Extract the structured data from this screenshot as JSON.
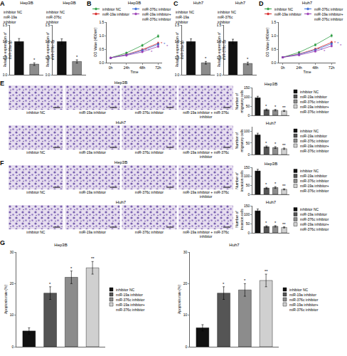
{
  "chart_data": [
    {
      "type": "bar",
      "title": "Hep3B",
      "y_label": "Relative expression of miR-19a-3p",
      "categories": [
        "inhibitor NC",
        "miR-19a inhibitor"
      ],
      "values": [
        1.0,
        0.32
      ],
      "errors": [
        0.09,
        0.04
      ],
      "colors": [
        "#111111",
        "#8c8c8c"
      ],
      "annotations": [
        null,
        "*"
      ],
      "ylim": [
        0,
        1.5
      ],
      "yticks": [
        {
          "value": 0,
          "label": "0.0"
        },
        {
          "value": 0.5,
          "label": "0.5"
        },
        {
          "value": 1,
          "label": "1.0"
        },
        {
          "value": 1.5,
          "label": "1.5"
        }
      ],
      "tick_labels": "y",
      "legend": "top"
    },
    {
      "type": "bar",
      "title": "Hep3B",
      "y_label": "Relative expression of miR-376c-3p",
      "categories": [
        "inhibitor NC",
        "miR-376c inhibitor"
      ],
      "values": [
        1.0,
        0.4
      ],
      "errors": [
        0.08,
        0.05
      ],
      "colors": [
        "#111111",
        "#8c8c8c"
      ],
      "annotations": [
        null,
        "*"
      ],
      "ylim": [
        0,
        1.5
      ],
      "yticks": [
        {
          "value": 0,
          "label": "0.0"
        },
        {
          "value": 0.5,
          "label": "0.5"
        },
        {
          "value": 1,
          "label": "1.0"
        },
        {
          "value": 1.5,
          "label": "1.5"
        }
      ],
      "tick_labels": "y",
      "legend": "top"
    },
    {
      "type": "line",
      "title": "Hep3B",
      "x_label": "Time",
      "y_label": "OD Value (450nm)",
      "categories": [
        "0h",
        "24h",
        "48h",
        "72h"
      ],
      "series": [
        {
          "name": "inhibitor NC",
          "color": "#2e9e44",
          "marker": "circle",
          "values": [
            0.18,
            0.36,
            0.64,
            0.98
          ],
          "errors": [
            0.02,
            0.03,
            0.04,
            0.05
          ]
        },
        {
          "name": "miR-19a inhibitor",
          "color": "#d62728",
          "marker": "circle",
          "values": [
            0.18,
            0.3,
            0.48,
            0.72
          ],
          "errors": [
            0.02,
            0.03,
            0.04,
            0.04
          ],
          "annotations": [
            null,
            null,
            "*",
            "*"
          ]
        },
        {
          "name": "miR-376c inhibitor",
          "color": "#3b6fd8",
          "marker": "circle",
          "values": [
            0.18,
            0.29,
            0.45,
            0.68
          ],
          "errors": [
            0.02,
            0.03,
            0.04,
            0.04
          ],
          "annotations": [
            null,
            null,
            "*",
            "*"
          ]
        },
        {
          "name": "miR-19a inhibitor+miR-376c inhibitor",
          "color": "#9b3fb5",
          "marker": "circle",
          "values": [
            0.18,
            0.27,
            0.4,
            0.6
          ],
          "errors": [
            0.02,
            0.03,
            0.03,
            0.04
          ],
          "annotations": [
            null,
            null,
            "*",
            "*"
          ]
        }
      ],
      "ylim": [
        0,
        1.5
      ],
      "yticks": [
        {
          "value": 0,
          "label": "0.0"
        },
        {
          "value": 0.5,
          "label": "0.5"
        },
        {
          "value": 1,
          "label": "1.0"
        },
        {
          "value": 1.5,
          "label": "1.5"
        }
      ],
      "legend": "top"
    },
    {
      "type": "bar",
      "title": "Huh7",
      "y_label": "Relative expression of miR-19a-3p",
      "categories": [
        "inhibitor NC",
        "miR-19a inhibitor"
      ],
      "values": [
        1.0,
        0.36
      ],
      "errors": [
        0.08,
        0.04
      ],
      "colors": [
        "#111111",
        "#8c8c8c"
      ],
      "annotations": [
        null,
        "*"
      ],
      "ylim": [
        0,
        1.5
      ],
      "yticks": [
        {
          "value": 0,
          "label": "0.0"
        },
        {
          "value": 0.5,
          "label": "0.5"
        },
        {
          "value": 1,
          "label": "1.0"
        },
        {
          "value": 1.5,
          "label": "1.5"
        }
      ],
      "tick_labels": "y",
      "legend": "top"
    },
    {
      "type": "bar",
      "title": "Huh7",
      "y_label": "Relative expression of miR-376c-3p",
      "categories": [
        "inhibitor NC",
        "miR-376c inhibitor"
      ],
      "values": [
        1.0,
        0.34
      ],
      "errors": [
        0.07,
        0.04
      ],
      "colors": [
        "#111111",
        "#8c8c8c"
      ],
      "annotations": [
        null,
        "*"
      ],
      "ylim": [
        0,
        1.5
      ],
      "yticks": [
        {
          "value": 0,
          "label": "0.0"
        },
        {
          "value": 0.5,
          "label": "0.5"
        },
        {
          "value": 1,
          "label": "1.0"
        },
        {
          "value": 1.5,
          "label": "1.5"
        }
      ],
      "tick_labels": "y",
      "legend": "top"
    },
    {
      "type": "line",
      "title": "Huh7",
      "x_label": "Time",
      "y_label": "OD Value (450nm)",
      "categories": [
        "0h",
        "24h",
        "48h",
        "72h"
      ],
      "series": [
        {
          "name": "inhibitor NC",
          "color": "#2e9e44",
          "marker": "circle",
          "values": [
            0.2,
            0.38,
            0.66,
            1.0
          ],
          "errors": [
            0.02,
            0.03,
            0.04,
            0.05
          ]
        },
        {
          "name": "miR-19a inhibitor",
          "color": "#d62728",
          "marker": "circle",
          "values": [
            0.2,
            0.32,
            0.5,
            0.75
          ],
          "errors": [
            0.02,
            0.03,
            0.04,
            0.04
          ],
          "annotations": [
            null,
            null,
            "*",
            "*"
          ]
        },
        {
          "name": "miR-376c inhibitor",
          "color": "#3b6fd8",
          "marker": "circle",
          "values": [
            0.2,
            0.31,
            0.47,
            0.7
          ],
          "errors": [
            0.02,
            0.03,
            0.04,
            0.04
          ],
          "annotations": [
            null,
            null,
            "*",
            "*"
          ]
        },
        {
          "name": "miR-19a inhibitor+miR-376c inhibitor",
          "color": "#9b3fb5",
          "marker": "circle",
          "values": [
            0.2,
            0.28,
            0.42,
            0.62
          ],
          "errors": [
            0.02,
            0.03,
            0.03,
            0.04
          ],
          "annotations": [
            null,
            null,
            "*",
            "*"
          ]
        }
      ],
      "ylim": [
        0,
        1.5
      ],
      "yticks": [
        {
          "value": 0,
          "label": "0.0"
        },
        {
          "value": 0.5,
          "label": "0.5"
        },
        {
          "value": 1,
          "label": "1.0"
        },
        {
          "value": 1.5,
          "label": "1.5"
        }
      ],
      "legend": "top"
    },
    {
      "type": "bar",
      "title": "Hep3B",
      "y_label": "Number of migratory cells",
      "categories": [
        "inhibitor NC",
        "miR-19a inhibitor",
        "miR-376c inhibitor",
        "miR-19a inhibitor+miR-376c inhibitor"
      ],
      "values": [
        95,
        30,
        28,
        24
      ],
      "errors": [
        8,
        4,
        4,
        3
      ],
      "colors": [
        "#111111",
        "#555555",
        "#8c8c8c",
        "#d0d0d0"
      ],
      "annotations": [
        null,
        "*",
        "*",
        "**"
      ],
      "ylim": [
        0,
        150
      ],
      "yticks": [
        0,
        50,
        100,
        150
      ],
      "tick_labels": "y",
      "legend": "right"
    },
    {
      "type": "bar",
      "title": "Huh7",
      "y_label": "Number of migratory cells",
      "categories": [
        "inhibitor NC",
        "miR-19a inhibitor",
        "miR-376c inhibitor",
        "miR-19a inhibitor+miR-376c inhibitor"
      ],
      "values": [
        85,
        33,
        30,
        25
      ],
      "errors": [
        7,
        4,
        4,
        3
      ],
      "colors": [
        "#111111",
        "#555555",
        "#8c8c8c",
        "#d0d0d0"
      ],
      "annotations": [
        null,
        "*",
        "*",
        "**"
      ],
      "ylim": [
        0,
        120
      ],
      "yticks": [
        0,
        50,
        100
      ],
      "tick_labels": "y",
      "legend": "right"
    },
    {
      "type": "bar",
      "title": "Hep3B",
      "y_label": "Number of invasion cells",
      "categories": [
        "inhibitor NC",
        "miR-19a inhibitor",
        "miR-376c inhibitor",
        "miR-19a inhibitor+miR-376c inhibitor"
      ],
      "values": [
        130,
        35,
        38,
        28
      ],
      "errors": [
        9,
        4,
        5,
        3
      ],
      "colors": [
        "#111111",
        "#555555",
        "#8c8c8c",
        "#d0d0d0"
      ],
      "annotations": [
        null,
        "*",
        "*",
        "**"
      ],
      "ylim": [
        0,
        150
      ],
      "yticks": [
        0,
        50,
        100,
        150
      ],
      "tick_labels": "y",
      "legend": "right"
    },
    {
      "type": "bar",
      "title": "Huh7",
      "y_label": "Number of invasion cells",
      "categories": [
        "inhibitor NC",
        "miR-19a inhibitor",
        "miR-376c inhibitor",
        "miR-19a inhibitor+miR-376c inhibitor"
      ],
      "values": [
        122,
        35,
        36,
        30
      ],
      "errors": [
        10,
        4,
        4,
        3
      ],
      "colors": [
        "#111111",
        "#555555",
        "#8c8c8c",
        "#d0d0d0"
      ],
      "annotations": [
        null,
        "*",
        "*",
        "**"
      ],
      "ylim": [
        0,
        150
      ],
      "yticks": [
        0,
        50,
        100,
        150
      ],
      "tick_labels": "y",
      "legend": "right"
    },
    {
      "type": "bar",
      "title": "Hep3B",
      "y_label": "Apoptosis rate (%)",
      "categories": [
        "inhibitor NC",
        "miR-19a inhibitor",
        "miR-376c inhibitor",
        "miR-19a inhibitor+miR-376c inhibitor"
      ],
      "values": [
        5,
        17,
        22,
        25
      ],
      "errors": [
        1,
        2,
        2,
        2
      ],
      "colors": [
        "#111111",
        "#555555",
        "#8c8c8c",
        "#d0d0d0"
      ],
      "annotations": [
        null,
        "*",
        "*",
        "**"
      ],
      "ylim": [
        0,
        30
      ],
      "yticks": [
        0,
        10,
        20,
        30
      ],
      "tick_labels": "y",
      "legend": "right"
    },
    {
      "type": "bar",
      "title": "Huh7",
      "y_label": "Apoptosis rate (%)",
      "categories": [
        "inhibitor NC",
        "miR-19a inhibitor",
        "miR-376c inhibitor",
        "miR-19a inhibitor+miR-376c inhibitor"
      ],
      "values": [
        6,
        17,
        18,
        21
      ],
      "errors": [
        1,
        2,
        2,
        2
      ],
      "colors": [
        "#111111",
        "#555555",
        "#8c8c8c",
        "#d0d0d0"
      ],
      "annotations": [
        null,
        "*",
        "*",
        "**"
      ],
      "ylim": [
        0,
        30
      ],
      "yticks": [
        0,
        10,
        20,
        30
      ],
      "tick_labels": "y",
      "legend": "right"
    }
  ],
  "image_panels": [
    {
      "rows": [
        {
          "title": "Hep3B",
          "captions": [
            "inhibitor NC",
            "miR-19a inhibitor",
            "miR-376c inhibitor",
            "miR-19a inhibitor + miR-376c inhibitor"
          ]
        },
        {
          "title": "Huh7",
          "captions": [
            "inhibitor NC",
            "miR-19a inhibitor",
            "miR-376c inhibitor",
            "miR-19a inhibitor + miR-376c inhibitor"
          ]
        }
      ]
    },
    {
      "rows": [
        {
          "title": "Hep3B",
          "captions": [
            "inhibitor NC",
            "miR-19a inhibitor",
            "miR-376c inhibitor",
            "miR-19a inhibitor + miR-376c inhibitor"
          ]
        },
        {
          "title": "Huh7",
          "captions": [
            "inhibitor NC",
            "miR-19a inhibitor",
            "miR-376c inhibitor",
            "miR-19a inhibitor + miR-376c inhibitor"
          ]
        }
      ]
    }
  ],
  "panel_labels": [
    "A",
    "B",
    "C",
    "D",
    "E",
    "F",
    "G"
  ]
}
